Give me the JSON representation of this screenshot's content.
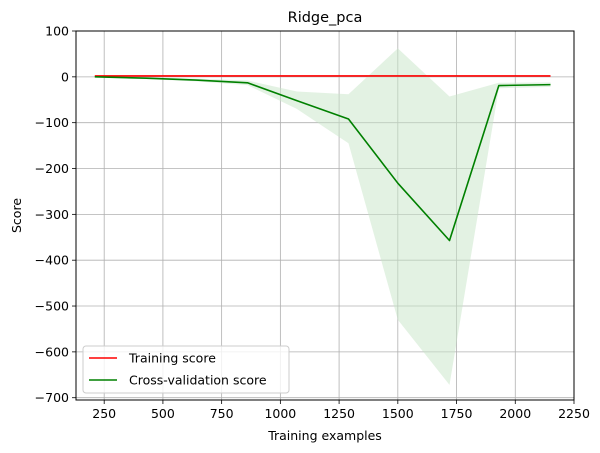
{
  "chart_data": {
    "type": "line",
    "title": "Ridge_pca",
    "xlabel": "Training examples",
    "ylabel": "Score",
    "xlim": [
      130,
      2250
    ],
    "ylim": [
      -705,
      100
    ],
    "xticks": [
      250,
      500,
      750,
      1000,
      1250,
      1500,
      1750,
      2000,
      2250
    ],
    "yticks": [
      100,
      0,
      -100,
      -200,
      -300,
      -400,
      -500,
      -600,
      -700
    ],
    "xtick_labels": [
      "250",
      "500",
      "750",
      "1000",
      "1250",
      "1500",
      "1750",
      "2000",
      "2250"
    ],
    "ytick_labels": [
      "100",
      "0",
      "−100",
      "−200",
      "−300",
      "−400",
      "−500",
      "−600",
      "−700"
    ],
    "grid": true,
    "legend_position": "lower-left",
    "series": [
      {
        "name": "Training score",
        "color": "#ff0000",
        "x": [
          210,
          430,
          640,
          860,
          1070,
          1290,
          1500,
          1720,
          1930,
          2150
        ],
        "y": [
          2,
          2,
          2,
          2,
          2,
          2,
          2,
          2,
          2,
          2
        ],
        "band_lower": [
          2,
          2,
          2,
          2,
          2,
          2,
          2,
          2,
          2,
          2
        ],
        "band_upper": [
          2,
          2,
          2,
          2,
          2,
          2,
          2,
          2,
          2,
          2
        ]
      },
      {
        "name": "Cross-validation score",
        "color": "#008000",
        "band_color": "#c8e6c8",
        "x": [
          210,
          430,
          640,
          860,
          1070,
          1290,
          1500,
          1720,
          1930,
          2150
        ],
        "y": [
          0,
          -3,
          -7,
          -13,
          -52,
          -92,
          -232,
          -357,
          -19,
          -17
        ],
        "band_lower": [
          -1,
          -5,
          -10,
          -18,
          -70,
          -145,
          -530,
          -672,
          -25,
          -22
        ],
        "band_upper": [
          1,
          -1,
          -4,
          -8,
          -32,
          -38,
          62,
          -43,
          -13,
          -12
        ]
      }
    ]
  }
}
